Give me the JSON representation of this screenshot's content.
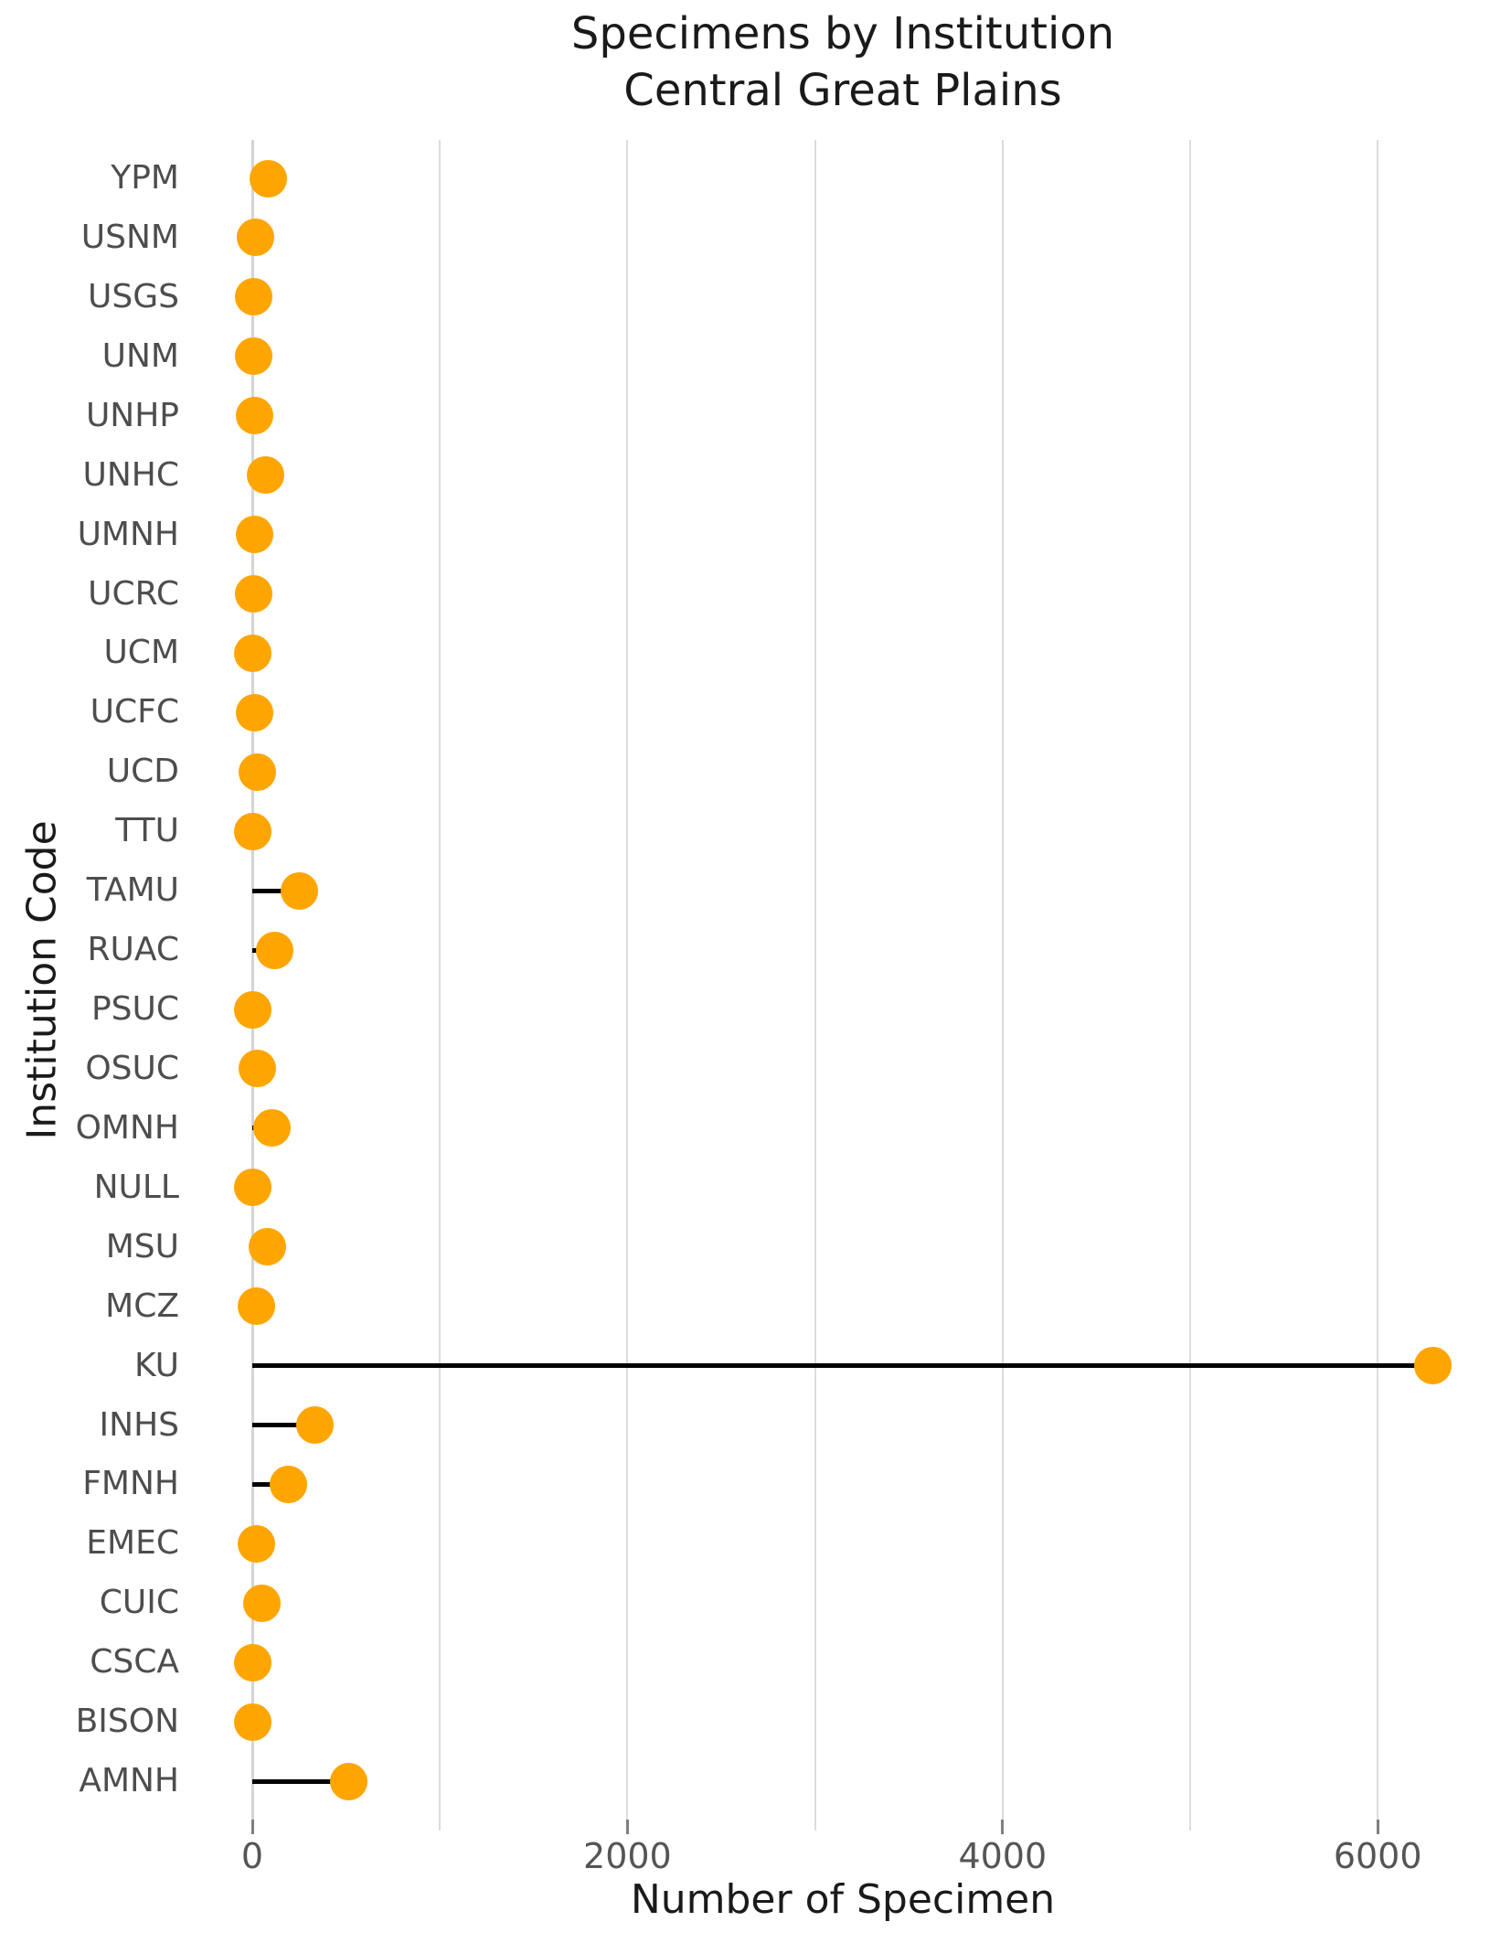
{
  "chart_data": {
    "type": "lollipop",
    "orientation": "horizontal",
    "title": "Specimens by Institution",
    "subtitle": "Central Great Plains",
    "xlabel": "Number of Specimen",
    "ylabel": "Institution Code",
    "categories": [
      "YPM",
      "USNM",
      "USGS",
      "UNM",
      "UNHP",
      "UNHC",
      "UMNH",
      "UCRC",
      "UCM",
      "UCFC",
      "UCD",
      "TTU",
      "TAMU",
      "RUAC",
      "PSUC",
      "OSUC",
      "OMNH",
      "NULL",
      "MSU",
      "MCZ",
      "KU",
      "INHS",
      "FMNH",
      "EMEC",
      "CUIC",
      "CSCA",
      "BISON",
      "AMNH"
    ],
    "values": [
      84,
      18,
      6,
      6,
      12,
      70,
      11,
      7,
      4,
      11,
      28,
      1,
      251,
      119,
      1,
      29,
      105,
      4,
      80,
      23,
      6294,
      335,
      194,
      20,
      53,
      2,
      1,
      515
    ],
    "xticks": [
      0,
      2000,
      4000,
      6000
    ],
    "xtick_labels": [
      "0",
      "2000",
      "4000",
      "6000"
    ],
    "xlim": [
      0,
      6500
    ],
    "grid": {
      "axis": "x",
      "step": 1000,
      "max": 6000,
      "on": true
    },
    "legend_position": "none",
    "colors": {
      "dot": "#FFA500",
      "stem": "#000000",
      "gridline": "#dcdcdc",
      "tick_label": "#555555",
      "category_label": "#4d4d4d",
      "title": "#1a1a1a"
    }
  }
}
